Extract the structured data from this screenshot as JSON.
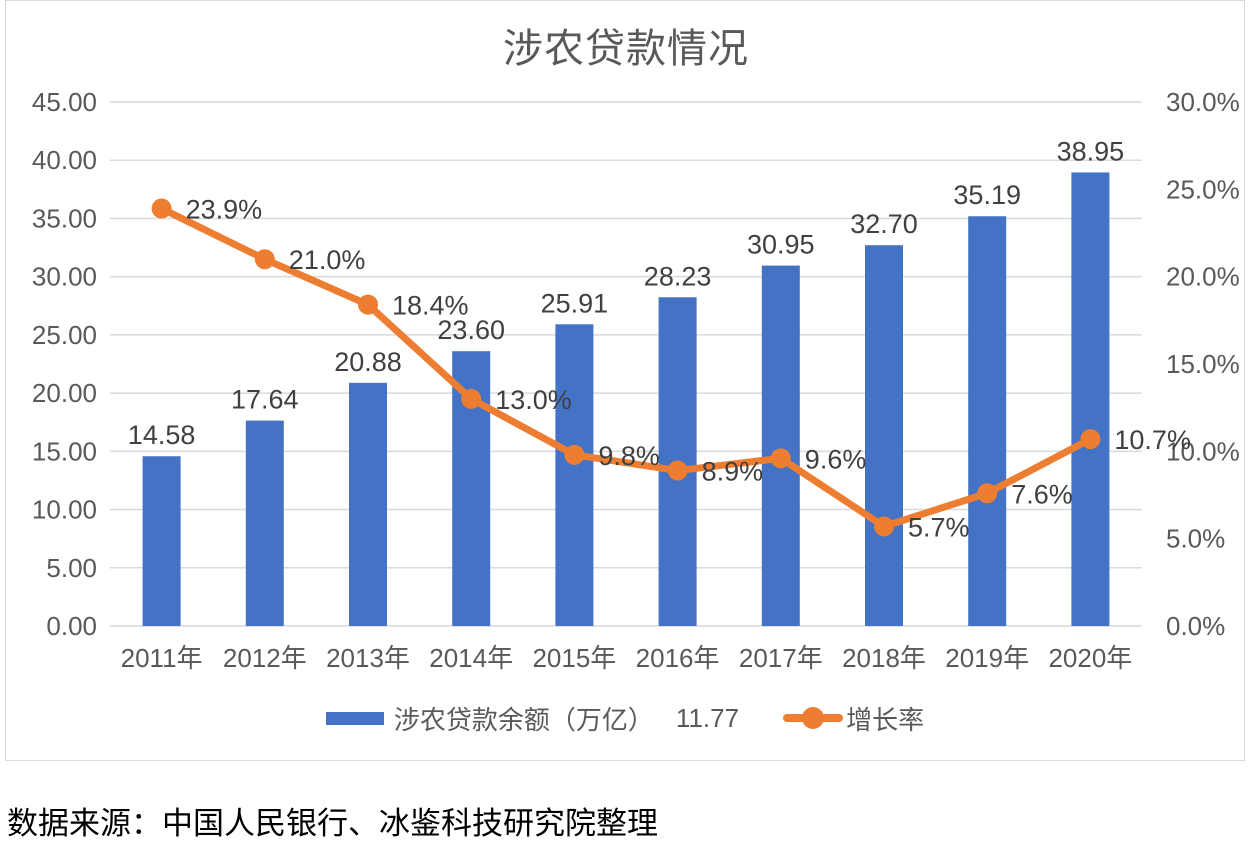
{
  "title": "涉农贷款情况",
  "source_note": "数据来源：中国人民银行、冰鉴科技研究院整理",
  "legend": {
    "bar_series_label": "涉农贷款余额（万亿）",
    "bar_series_extra": "11.77",
    "line_series_label": "增长率"
  },
  "colors": {
    "bar": "#4472C4",
    "line": "#ED7D31",
    "grid": "#D9D9D9",
    "frame_border": "#D9D9D9",
    "axis_text": "#595959",
    "data_label_text": "#404040",
    "title_text": "#595959"
  },
  "chart_data": {
    "type": "bar",
    "subtype": "combo bar+line, dual axis",
    "title": "涉农贷款情况",
    "categories": [
      "2011年",
      "2012年",
      "2013年",
      "2014年",
      "2015年",
      "2016年",
      "2017年",
      "2018年",
      "2019年",
      "2020年"
    ],
    "series": [
      {
        "name": "涉农贷款余额（万亿）",
        "type": "bar",
        "axis": "left",
        "values": [
          14.58,
          17.64,
          20.88,
          23.6,
          25.91,
          28.23,
          30.95,
          32.7,
          35.19,
          38.95
        ],
        "labels": [
          "14.58",
          "17.64",
          "20.88",
          "23.60",
          "25.91",
          "28.23",
          "30.95",
          "32.70",
          "35.19",
          "38.95"
        ]
      },
      {
        "name": "增长率",
        "type": "line",
        "axis": "right",
        "values": [
          23.9,
          21.0,
          18.4,
          13.0,
          9.8,
          8.9,
          9.6,
          5.7,
          7.6,
          10.7
        ],
        "labels": [
          "23.9%",
          "21.0%",
          "18.4%",
          "13.0%",
          "9.8%",
          "8.9%",
          "9.6%",
          "5.7%",
          "7.6%",
          "10.7%"
        ]
      }
    ],
    "left_axis": {
      "min": 0,
      "max": 45,
      "step": 5,
      "tick_labels_top_to_bottom": [
        "45.00",
        "40.00",
        "35.00",
        "30.00",
        "25.00",
        "20.00",
        "15.00",
        "10.00",
        "5.00",
        "0.00"
      ]
    },
    "right_axis": {
      "min": 0,
      "max": 30,
      "step": 5,
      "unit": "%",
      "tick_labels_top_to_bottom": [
        "30.0%",
        "25.0%",
        "20.0%",
        "15.0%",
        "10.0%",
        "5.0%",
        "0.0%"
      ]
    },
    "grid": "horizontal",
    "legend_position": "bottom"
  }
}
